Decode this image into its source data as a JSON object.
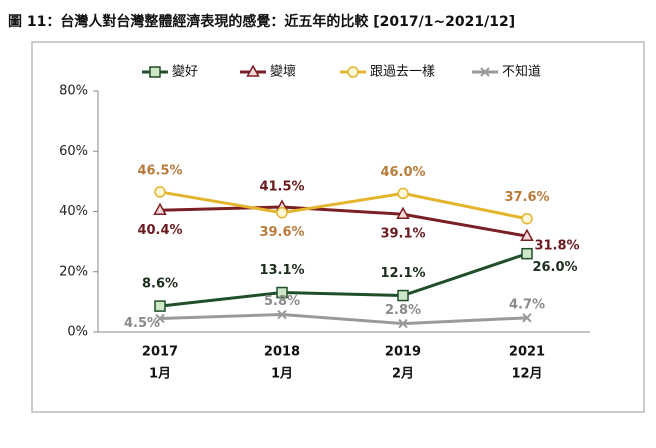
{
  "chart_data": {
    "type": "line",
    "title": "圖 11：台灣人對台灣整體經濟表現的感覺：近五年的比較  [2017/1~2021/12]",
    "categories": [
      [
        "2017",
        "1月"
      ],
      [
        "2018",
        "1月"
      ],
      [
        "2019",
        "2月"
      ],
      [
        "2021",
        "12月"
      ]
    ],
    "ylim": [
      0,
      80
    ],
    "yticks": [
      {
        "value": 0,
        "label": "0%"
      },
      {
        "value": 20,
        "label": "20%"
      },
      {
        "value": 40,
        "label": "40%"
      },
      {
        "value": 60,
        "label": "60%"
      },
      {
        "value": 80,
        "label": "80%"
      }
    ],
    "series": [
      {
        "name": "變好",
        "color": "#1f4f2a",
        "marker": "square",
        "values": [
          8.6,
          13.1,
          12.1,
          26.0
        ],
        "value_labels": [
          "8.6%",
          "13.1%",
          "12.1%",
          "26.0%"
        ]
      },
      {
        "name": "變壞",
        "color": "#7a1f24",
        "marker": "triangle",
        "values": [
          40.4,
          41.5,
          39.1,
          31.8
        ],
        "value_labels": [
          "40.4%",
          "41.5%",
          "39.1%",
          "31.8%"
        ]
      },
      {
        "name": "跟過去一樣",
        "color": "#e3b42c",
        "marker": "circle",
        "values": [
          46.5,
          39.6,
          46.0,
          37.6
        ],
        "value_labels": [
          "46.5%",
          "39.6%",
          "46.0%",
          "37.6%"
        ]
      },
      {
        "name": "不知道",
        "color": "#9a9a9a",
        "marker": "x",
        "values": [
          4.5,
          5.8,
          2.8,
          4.7
        ],
        "value_labels": [
          "4.5%",
          "5.8%",
          "2.8%",
          "4.7%"
        ]
      }
    ]
  }
}
